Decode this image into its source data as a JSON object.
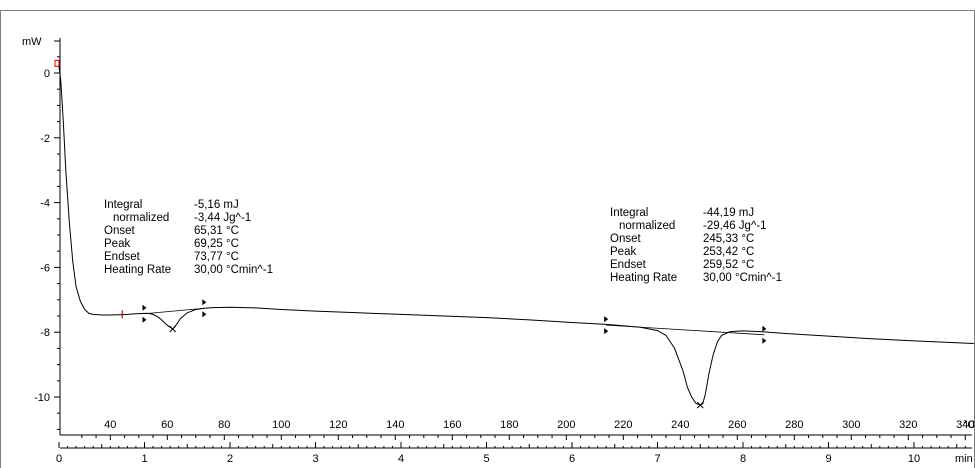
{
  "chart_data": {
    "type": "line",
    "title": "",
    "ylabel": "mW",
    "xlabel_time": "min",
    "xlabel_temp": "°C",
    "ylim": [
      -11.3,
      1.0
    ],
    "xlim_min": [
      0,
      10.7
    ],
    "y_ticks": [
      0,
      -2,
      -4,
      -6,
      -8,
      -10
    ],
    "time_ticks": [
      0,
      1,
      2,
      3,
      4,
      5,
      6,
      7,
      8,
      9,
      10
    ],
    "temp_ticks": [
      40,
      60,
      80,
      100,
      120,
      140,
      160,
      180,
      200,
      220,
      240,
      260,
      280,
      300,
      320,
      340
    ],
    "temp_axis_last_label": "340",
    "series": [
      {
        "x": [
          0.0,
          0.02,
          0.05,
          0.08,
          0.12,
          0.16,
          0.2,
          0.25,
          0.3,
          0.35,
          0.4,
          0.5,
          0.6,
          0.7,
          0.8,
          0.9,
          1.0,
          1.05,
          1.1,
          1.15,
          1.2,
          1.25,
          1.3,
          1.33,
          1.37,
          1.42,
          1.5,
          1.6,
          1.7,
          1.8,
          2.0,
          2.3,
          2.6,
          3.0,
          3.5,
          4.0,
          4.5,
          5.0,
          5.5,
          6.0,
          6.4,
          6.6,
          6.8,
          7.0,
          7.1,
          7.2,
          7.3,
          7.35,
          7.4,
          7.45,
          7.5,
          7.53,
          7.56,
          7.6,
          7.65,
          7.7,
          7.75,
          7.85,
          8.0,
          8.2,
          8.5,
          9.0,
          9.5,
          10.0,
          10.7
        ],
        "y": [
          0.2,
          -0.2,
          -1.5,
          -3.0,
          -4.6,
          -5.8,
          -6.6,
          -7.05,
          -7.3,
          -7.42,
          -7.45,
          -7.47,
          -7.47,
          -7.46,
          -7.45,
          -7.43,
          -7.42,
          -7.42,
          -7.45,
          -7.52,
          -7.62,
          -7.75,
          -7.85,
          -7.9,
          -7.78,
          -7.58,
          -7.4,
          -7.3,
          -7.26,
          -7.24,
          -7.23,
          -7.25,
          -7.3,
          -7.35,
          -7.4,
          -7.45,
          -7.5,
          -7.55,
          -7.62,
          -7.7,
          -7.76,
          -7.8,
          -7.85,
          -7.95,
          -8.1,
          -8.5,
          -9.2,
          -9.7,
          -10.0,
          -10.2,
          -10.25,
          -10.2,
          -9.9,
          -9.3,
          -8.7,
          -8.3,
          -8.1,
          -7.98,
          -7.96,
          -7.98,
          -8.04,
          -8.12,
          -8.2,
          -8.27,
          -8.35
        ]
      }
    ],
    "peaks": [
      {
        "time": 1.33,
        "value": -7.9,
        "onset_time": 1.0,
        "endset_time": 1.7,
        "marker_time": 0.74,
        "labels": [
          "Integral",
          "normalized",
          "Onset",
          "Peak",
          "Endset",
          "Heating Rate"
        ],
        "values": [
          "-5,16 mJ",
          "-3,44 Jg^-1",
          "65,31 °C",
          "69,25 °C",
          "73,77 °C",
          "30,00 °Cmin^-1"
        ]
      },
      {
        "time": 7.5,
        "value": -10.25,
        "onset_time": 6.4,
        "endset_time": 8.25,
        "labels": [
          "Integral",
          "normalized",
          "Onset",
          "Peak",
          "Endset",
          "Heating Rate"
        ],
        "values": [
          "-44,19 mJ",
          "-29,46 Jg^-1",
          "245,33 °C",
          "253,42 °C",
          "259,52 °C",
          "30,00 °Cmin^-1"
        ]
      }
    ],
    "baselines": [
      {
        "from": [
          1.0,
          -7.43
        ],
        "to": [
          1.7,
          -7.26
        ]
      },
      {
        "from": [
          6.4,
          -7.78
        ],
        "to": [
          8.25,
          -8.08
        ]
      }
    ],
    "grid": false,
    "legend": "none",
    "colors": {
      "line": "#000000",
      "marker": "#d00000",
      "frame": "#808080"
    }
  }
}
